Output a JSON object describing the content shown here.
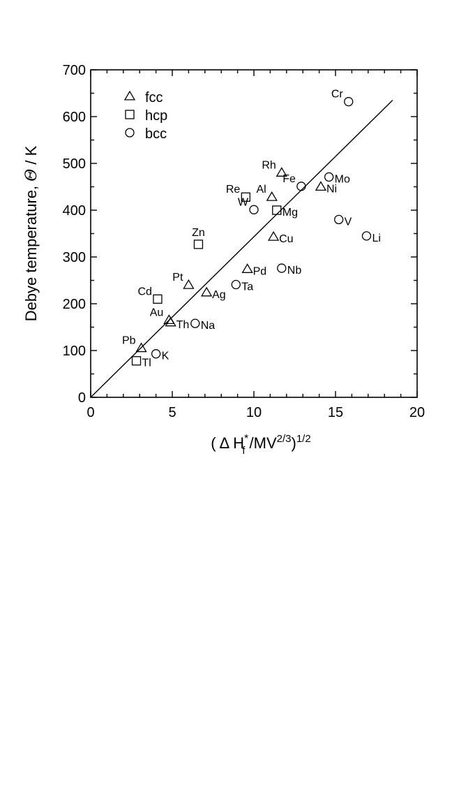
{
  "chart_data": {
    "type": "scatter",
    "title": "",
    "xlabel": {
      "prefix": "( Δ H",
      "sub": "f",
      "sup": "*",
      "mid": " /MV",
      "sup2": "2/3",
      "suffix": ")",
      "sup3": "1/2"
    },
    "ylabel": {
      "prefix": "Debye temperature,  ",
      "symbol": "Θ",
      "suffix": " / K"
    },
    "xlim": [
      0,
      20
    ],
    "ylim": [
      0,
      700
    ],
    "xticks": [
      0,
      5,
      10,
      15,
      20
    ],
    "yticks": [
      0,
      100,
      200,
      300,
      400,
      500,
      600,
      700
    ],
    "xtick_labels": [
      "0",
      "5",
      "10",
      "15",
      "20"
    ],
    "ytick_labels": [
      "0",
      "100",
      "200",
      "300",
      "400",
      "500",
      "600",
      "700"
    ],
    "grid": false,
    "legend_position": "top-left",
    "series": [
      {
        "name": "fcc",
        "marker": "triangle",
        "points": [
          {
            "label": "Rh",
            "x": 11.7,
            "y": 480,
            "anchor": "left"
          },
          {
            "label": "Al",
            "x": 11.1,
            "y": 428,
            "anchor": "left"
          },
          {
            "label": "Ni",
            "x": 14.1,
            "y": 450,
            "anchor": "right"
          },
          {
            "label": "Cu",
            "x": 11.2,
            "y": 343,
            "anchor": "right"
          },
          {
            "label": "Pd",
            "x": 9.6,
            "y": 274,
            "anchor": "right"
          },
          {
            "label": "Pt",
            "x": 6.0,
            "y": 240,
            "anchor": "left"
          },
          {
            "label": "Ag",
            "x": 7.1,
            "y": 224,
            "anchor": "right"
          },
          {
            "label": "Au",
            "x": 4.8,
            "y": 165,
            "anchor": "left"
          },
          {
            "label": "Th",
            "x": 4.9,
            "y": 160,
            "anchor": "right"
          },
          {
            "label": "Pb",
            "x": 3.1,
            "y": 105,
            "anchor": "left"
          }
        ]
      },
      {
        "name": "hcp",
        "marker": "square",
        "points": [
          {
            "label": "Re",
            "x": 9.5,
            "y": 428,
            "anchor": "left"
          },
          {
            "label": "Mg",
            "x": 11.4,
            "y": 400,
            "anchor": "right"
          },
          {
            "label": "Zn",
            "x": 6.6,
            "y": 327,
            "anchor": "above"
          },
          {
            "label": "Cd",
            "x": 4.1,
            "y": 210,
            "anchor": "left"
          },
          {
            "label": "Tl",
            "x": 2.8,
            "y": 78,
            "anchor": "right"
          }
        ]
      },
      {
        "name": "bcc",
        "marker": "circle",
        "points": [
          {
            "label": "Cr",
            "x": 15.8,
            "y": 632,
            "anchor": "left"
          },
          {
            "label": "Fe",
            "x": 12.9,
            "y": 451,
            "anchor": "left"
          },
          {
            "label": "Mo",
            "x": 14.6,
            "y": 471,
            "anchor": "right"
          },
          {
            "label": "W",
            "x": 10.0,
            "y": 401,
            "anchor": "left"
          },
          {
            "label": "V",
            "x": 15.2,
            "y": 380,
            "anchor": "right"
          },
          {
            "label": "Li",
            "x": 16.9,
            "y": 345,
            "anchor": "right"
          },
          {
            "label": "Nb",
            "x": 11.7,
            "y": 276,
            "anchor": "right"
          },
          {
            "label": "Ta",
            "x": 8.9,
            "y": 241,
            "anchor": "right"
          },
          {
            "label": "Na",
            "x": 6.4,
            "y": 158,
            "anchor": "right"
          },
          {
            "label": "K",
            "x": 4.0,
            "y": 93,
            "anchor": "right"
          }
        ]
      }
    ],
    "fit_line": {
      "x": [
        0,
        18.5
      ],
      "y": [
        0,
        635
      ]
    }
  }
}
